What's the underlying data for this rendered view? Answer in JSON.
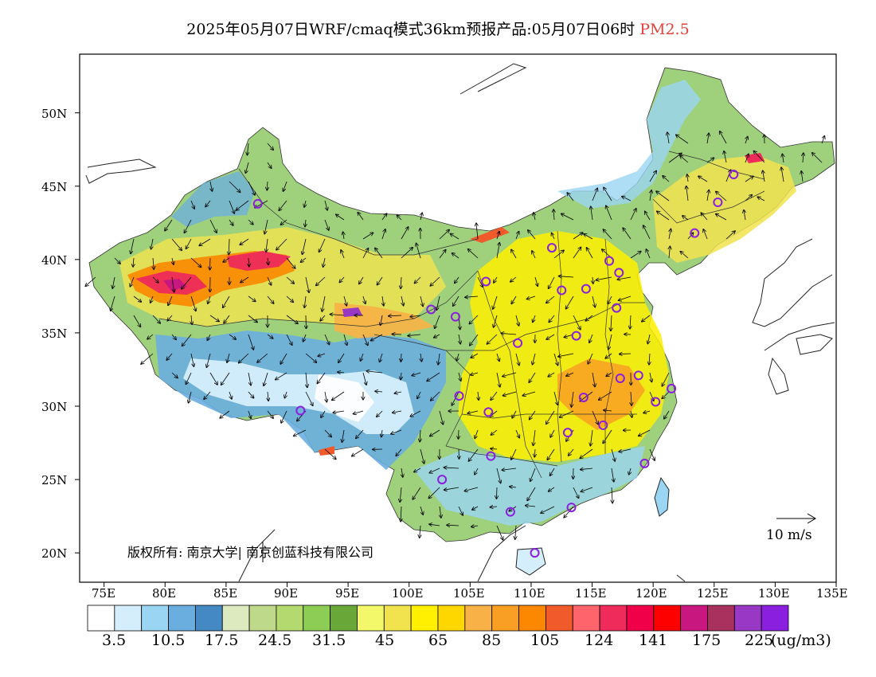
{
  "title": {
    "main": "2025年05月07日WRF/cmaq模式36km预报产品:05月07日06时",
    "product": "PM2.5"
  },
  "axes": {
    "lon_labels": [
      "75E",
      "80E",
      "85E",
      "90E",
      "95E",
      "100E",
      "105E",
      "110E",
      "115E",
      "120E",
      "125E",
      "130E",
      "135E"
    ],
    "lat_labels": [
      "50N",
      "45N",
      "40N",
      "35N",
      "30N",
      "25N",
      "20N"
    ]
  },
  "map": {
    "lon_range": [
      73,
      135
    ],
    "lat_range": [
      18,
      54
    ],
    "cities": [
      {
        "lon": 87.6,
        "lat": 43.8
      },
      {
        "lon": 91.1,
        "lat": 29.7
      },
      {
        "lon": 101.8,
        "lat": 36.6
      },
      {
        "lon": 103.8,
        "lat": 36.1
      },
      {
        "lon": 106.3,
        "lat": 38.5
      },
      {
        "lon": 111.7,
        "lat": 40.8
      },
      {
        "lon": 112.5,
        "lat": 37.9
      },
      {
        "lon": 114.5,
        "lat": 38.0
      },
      {
        "lon": 116.4,
        "lat": 39.9
      },
      {
        "lon": 117.2,
        "lat": 39.1
      },
      {
        "lon": 117.0,
        "lat": 36.7
      },
      {
        "lon": 113.7,
        "lat": 34.8
      },
      {
        "lon": 108.9,
        "lat": 34.3
      },
      {
        "lon": 104.1,
        "lat": 30.7
      },
      {
        "lon": 106.5,
        "lat": 29.6
      },
      {
        "lon": 114.3,
        "lat": 30.6
      },
      {
        "lon": 117.3,
        "lat": 31.9
      },
      {
        "lon": 118.8,
        "lat": 32.1
      },
      {
        "lon": 121.5,
        "lat": 31.2
      },
      {
        "lon": 120.2,
        "lat": 30.3
      },
      {
        "lon": 115.9,
        "lat": 28.7
      },
      {
        "lon": 113.0,
        "lat": 28.2
      },
      {
        "lon": 106.7,
        "lat": 26.6
      },
      {
        "lon": 102.7,
        "lat": 25.0
      },
      {
        "lon": 108.3,
        "lat": 22.8
      },
      {
        "lon": 113.3,
        "lat": 23.1
      },
      {
        "lon": 119.3,
        "lat": 26.1
      },
      {
        "lon": 110.3,
        "lat": 20.0
      },
      {
        "lon": 123.4,
        "lat": 41.8
      },
      {
        "lon": 125.3,
        "lat": 43.9
      },
      {
        "lon": 126.6,
        "lat": 45.8
      }
    ]
  },
  "wind_scale": {
    "label": "10 m/s"
  },
  "copyright": "版权所有: 南京大学| 南京创蓝科技有限公司",
  "colorbar": {
    "colors": [
      "#ffffff",
      "#d5eefb",
      "#9ad6f3",
      "#6aaee0",
      "#4489c3",
      "#dde9bf",
      "#bfd98a",
      "#b4d96e",
      "#8dcc55",
      "#6aa739",
      "#f2f86a",
      "#f1e34e",
      "#fef000",
      "#fed700",
      "#f8b146",
      "#f99f24",
      "#fb8800",
      "#f15a2b",
      "#fd646b",
      "#ee2b5b",
      "#ef0048",
      "#fd0000",
      "#c8177f",
      "#a8315e",
      "#9838c5",
      "#8b1fe0"
    ],
    "labels": [
      "3.5",
      "10.5",
      "17.5",
      "24.5",
      "31.5",
      "45",
      "65",
      "85",
      "105",
      "124",
      "141",
      "175",
      "225"
    ],
    "unit": "(ug/m3)"
  }
}
